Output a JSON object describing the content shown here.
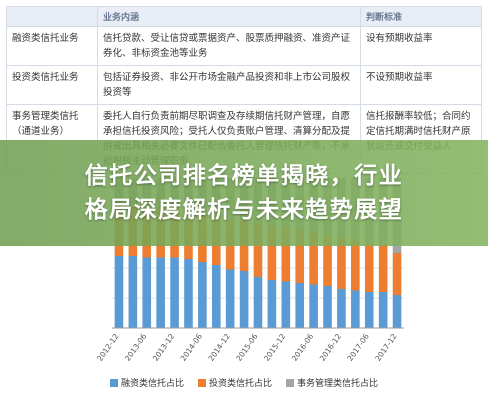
{
  "table": {
    "headers": [
      "",
      "业务内涵",
      "判断标准"
    ],
    "rows": [
      {
        "category": "融资类信托业务",
        "content": "信托贷款、受让信贷或票据资产、股票质押融资、准资产证券化、非标资金池等业务",
        "criteria": "设有预期收益率"
      },
      {
        "category": "投资类信托业务",
        "content": "包括证券投资、非公开市场金融产品投资和非上市公司股权投资等",
        "criteria": "不设预期收益率"
      },
      {
        "category": "事务管理类信托（通道业务）",
        "content": "委托人自行负责前期尽职调查及存续期信托财产管理，自愿承担信托投资风险；受托人仅负责账户管理、清算分配及提供或出具相关必要文件已配合委托人管理信托财产等，不承担积极主动管理职责",
        "criteria": "信托报酬率较低；合同约定信托期满时信托财产原状返还或交付受益人"
      }
    ]
  },
  "banner": {
    "line1": "信托公司排名榜单揭晓，行业",
    "line2": "格局深度解析与未来趋势展望"
  },
  "chart_data": {
    "type": "bar",
    "stacked": true,
    "categories": [
      "2012-12",
      "2013-03",
      "2013-06",
      "2013-09",
      "2013-12",
      "2014-03",
      "2014-06",
      "2014-09",
      "2014-12",
      "2015-03",
      "2015-06",
      "2015-09",
      "2015-12",
      "2016-03",
      "2016-06",
      "2016-09",
      "2016-12",
      "2017-03",
      "2017-06",
      "2017-09",
      "2017-12"
    ],
    "series": [
      {
        "name": "融资类信托占比",
        "color": "#5b9bd5",
        "values": [
          48,
          48,
          47,
          47,
          47,
          46,
          44,
          42,
          39,
          38,
          34,
          32,
          31,
          30,
          29,
          28,
          26,
          25,
          24,
          24,
          22
        ]
      },
      {
        "name": "投资类信托占比",
        "color": "#ed7d31",
        "values": [
          34,
          33,
          33,
          33,
          33,
          33,
          32,
          33,
          33,
          34,
          36,
          36,
          36,
          36,
          35,
          34,
          34,
          34,
          33,
          32,
          28
        ]
      },
      {
        "name": "事务管理类信托占比",
        "color": "#a5a5a5",
        "values": [
          18,
          19,
          20,
          20,
          20,
          21,
          24,
          25,
          28,
          28,
          30,
          32,
          33,
          34,
          36,
          38,
          40,
          41,
          43,
          44,
          50
        ]
      }
    ],
    "ylim": [
      0,
      100
    ]
  }
}
